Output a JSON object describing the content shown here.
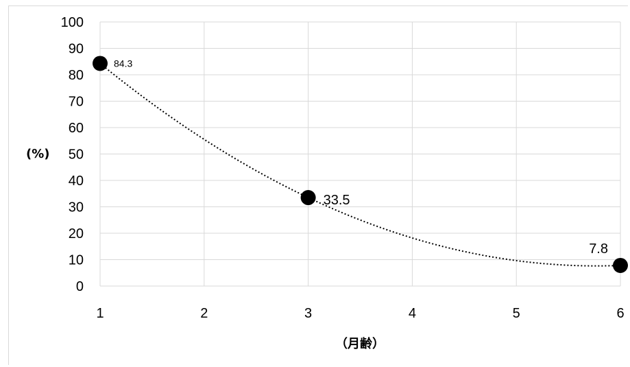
{
  "chart_data": {
    "type": "scatter",
    "title": "",
    "xlabel": "（月齢）",
    "ylabel": "(%)",
    "xlim": [
      1,
      6
    ],
    "ylim": [
      0,
      100
    ],
    "x_ticks": [
      "1",
      "2",
      "3",
      "4",
      "5",
      "6"
    ],
    "y_ticks": [
      "0",
      "10",
      "20",
      "30",
      "40",
      "50",
      "60",
      "70",
      "80",
      "90",
      "100"
    ],
    "grid": true,
    "trendline": "dotted polynomial",
    "series": [
      {
        "points": [
          {
            "x": 1,
            "y": 84.3,
            "label": "84.3"
          },
          {
            "x": 3,
            "y": 33.5,
            "label": "33.5"
          },
          {
            "x": 6,
            "y": 7.8,
            "label": "7.8"
          }
        ]
      }
    ],
    "colors": {
      "marker": "#000000",
      "grid": "#d9d9d9",
      "trendline": "#000000"
    }
  }
}
